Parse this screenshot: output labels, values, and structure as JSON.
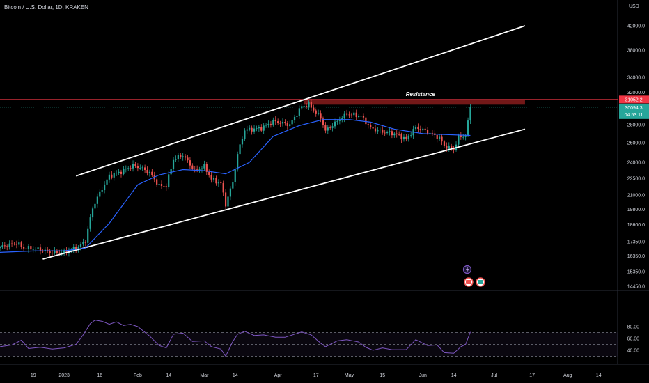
{
  "header": {
    "title": "Bitcoin / U.S. Dollar, 1D, KRAKEN",
    "currency": "USD"
  },
  "annotations": {
    "resistance": "Resistance"
  },
  "price_tags": {
    "resistance": "31052.2",
    "current": "30094.3",
    "countdown": "04:53:11"
  },
  "colors": {
    "background": "#000000",
    "up": "#26a69a",
    "down": "#ef5350",
    "ma": "#2962ff",
    "rsi": "#7e57c2",
    "resistance_zone": "#7f1b1b",
    "channel": "#ffffff",
    "current_tag": "#26a69a",
    "resistance_tag": "#f23645"
  },
  "chart_data": [
    {
      "type": "candlestick",
      "pair": "Bitcoin / U.S. Dollar",
      "timeframe": "1D",
      "exchange": "KRAKEN",
      "y_ticks": [
        "42000.0",
        "38000.0",
        "34000.0",
        "32000.0",
        "28000.0",
        "26000.0",
        "24000.0",
        "22500.0",
        "21000.0",
        "19800.0",
        "18600.0",
        "17350.0",
        "16350.0",
        "15350.0",
        "14450.0"
      ],
      "x_ticks": [
        "19",
        "2023",
        "16",
        "Feb",
        "14",
        "Mar",
        "14",
        "Apr",
        "17",
        "May",
        "15",
        "Jun",
        "14",
        "Jul",
        "17",
        "Aug",
        "14"
      ],
      "x_range": [
        "2022-12-05",
        "2023-08-22"
      ],
      "log_scale": true,
      "close_path": [
        [
          "2022-12-05",
          16950
        ],
        [
          "2022-12-12",
          17250
        ],
        [
          "2022-12-15",
          16900
        ],
        [
          "2022-12-20",
          16850
        ],
        [
          "2022-12-27",
          16600
        ],
        [
          "2023-01-01",
          16600
        ],
        [
          "2023-01-07",
          16950
        ],
        [
          "2023-01-10",
          17400
        ],
        [
          "2023-01-13",
          19900
        ],
        [
          "2023-01-15",
          20800
        ],
        [
          "2023-01-20",
          22700
        ],
        [
          "2023-01-25",
          23100
        ],
        [
          "2023-01-30",
          23700
        ],
        [
          "2023-02-02",
          23500
        ],
        [
          "2023-02-06",
          23000
        ],
        [
          "2023-02-10",
          21800
        ],
        [
          "2023-02-13",
          21800
        ],
        [
          "2023-02-16",
          24300
        ],
        [
          "2023-02-20",
          24700
        ],
        [
          "2023-02-25",
          23200
        ],
        [
          "2023-03-01",
          23600
        ],
        [
          "2023-03-04",
          22400
        ],
        [
          "2023-03-08",
          22000
        ],
        [
          "2023-03-10",
          20200
        ],
        [
          "2023-03-13",
          22100
        ],
        [
          "2023-03-15",
          24800
        ],
        [
          "2023-03-18",
          27400
        ],
        [
          "2023-03-25",
          27600
        ],
        [
          "2023-03-30",
          28400
        ],
        [
          "2023-04-06",
          28000
        ],
        [
          "2023-04-11",
          30200
        ],
        [
          "2023-04-14",
          30400
        ],
        [
          "2023-04-19",
          28800
        ],
        [
          "2023-04-21",
          27300
        ],
        [
          "2023-04-26",
          28400
        ],
        [
          "2023-04-30",
          29300
        ],
        [
          "2023-05-06",
          29000
        ],
        [
          "2023-05-10",
          27600
        ],
        [
          "2023-05-15",
          27200
        ],
        [
          "2023-05-20",
          27000
        ],
        [
          "2023-05-25",
          26400
        ],
        [
          "2023-05-29",
          27700
        ],
        [
          "2023-06-03",
          27200
        ],
        [
          "2023-06-08",
          26500
        ],
        [
          "2023-06-10",
          25700
        ],
        [
          "2023-06-14",
          25300
        ],
        [
          "2023-06-16",
          26600
        ],
        [
          "2023-06-19",
          26800
        ],
        [
          "2023-06-20",
          28300
        ],
        [
          "2023-06-21",
          30094
        ]
      ],
      "ma_path": [
        [
          "2022-12-05",
          16600
        ],
        [
          "2022-12-20",
          16700
        ],
        [
          "2023-01-01",
          16700
        ],
        [
          "2023-01-10",
          16900
        ],
        [
          "2023-01-20",
          18700
        ],
        [
          "2023-02-01",
          21900
        ],
        [
          "2023-02-10",
          22800
        ],
        [
          "2023-02-20",
          23300
        ],
        [
          "2023-03-01",
          23200
        ],
        [
          "2023-03-10",
          22900
        ],
        [
          "2023-03-20",
          24000
        ],
        [
          "2023-03-30",
          26700
        ],
        [
          "2023-04-10",
          27900
        ],
        [
          "2023-04-20",
          28600
        ],
        [
          "2023-05-01",
          28600
        ],
        [
          "2023-05-10",
          28300
        ],
        [
          "2023-05-20",
          27500
        ],
        [
          "2023-06-01",
          27000
        ],
        [
          "2023-06-10",
          26900
        ],
        [
          "2023-06-21",
          26800
        ]
      ],
      "resistance_zone": {
        "from": 30400,
        "to": 31052.2,
        "start": "2023-04-12",
        "end": "2023-07-14"
      },
      "channel": {
        "upper": [
          [
            "2023-01-06",
            22700
          ],
          [
            "2023-07-14",
            42000
          ]
        ],
        "lower": [
          [
            "2022-12-23",
            16150
          ],
          [
            "2023-07-14",
            27500
          ]
        ]
      },
      "current_price": 30094.3,
      "resistance_price": 31052.2
    },
    {
      "type": "line",
      "indicator": "RSI",
      "y_ticks": [
        "80.00",
        "60.00",
        "40.00"
      ],
      "levels": {
        "upper": 70,
        "middle": 50,
        "lower": 30
      },
      "x_range": [
        "2022-12-05",
        "2023-08-22"
      ],
      "series": [
        [
          "2022-12-05",
          46
        ],
        [
          "2022-12-10",
          49
        ],
        [
          "2022-12-14",
          57
        ],
        [
          "2022-12-17",
          43
        ],
        [
          "2022-12-22",
          45
        ],
        [
          "2022-12-27",
          42
        ],
        [
          "2023-01-01",
          44
        ],
        [
          "2023-01-06",
          50
        ],
        [
          "2023-01-09",
          66
        ],
        [
          "2023-01-12",
          85
        ],
        [
          "2023-01-14",
          91
        ],
        [
          "2023-01-17",
          89
        ],
        [
          "2023-01-20",
          84
        ],
        [
          "2023-01-23",
          88
        ],
        [
          "2023-01-26",
          82
        ],
        [
          "2023-01-29",
          84
        ],
        [
          "2023-02-01",
          80
        ],
        [
          "2023-02-06",
          64
        ],
        [
          "2023-02-10",
          48
        ],
        [
          "2023-02-13",
          44
        ],
        [
          "2023-02-16",
          67
        ],
        [
          "2023-02-20",
          69
        ],
        [
          "2023-02-24",
          55
        ],
        [
          "2023-03-01",
          56
        ],
        [
          "2023-03-04",
          46
        ],
        [
          "2023-03-08",
          42
        ],
        [
          "2023-03-10",
          30
        ],
        [
          "2023-03-13",
          55
        ],
        [
          "2023-03-15",
          67
        ],
        [
          "2023-03-18",
          72
        ],
        [
          "2023-03-22",
          65
        ],
        [
          "2023-03-26",
          66
        ],
        [
          "2023-03-31",
          62
        ],
        [
          "2023-04-04",
          62
        ],
        [
          "2023-04-11",
          71
        ],
        [
          "2023-04-15",
          66
        ],
        [
          "2023-04-19",
          52
        ],
        [
          "2023-04-21",
          46
        ],
        [
          "2023-04-26",
          56
        ],
        [
          "2023-04-30",
          58
        ],
        [
          "2023-05-05",
          54
        ],
        [
          "2023-05-08",
          45
        ],
        [
          "2023-05-11",
          40
        ],
        [
          "2023-05-15",
          44
        ],
        [
          "2023-05-19",
          41
        ],
        [
          "2023-05-25",
          41
        ],
        [
          "2023-05-29",
          58
        ],
        [
          "2023-06-03",
          48
        ],
        [
          "2023-06-07",
          49
        ],
        [
          "2023-06-10",
          36
        ],
        [
          "2023-06-14",
          35
        ],
        [
          "2023-06-17",
          46
        ],
        [
          "2023-06-19",
          50
        ],
        [
          "2023-06-21",
          71
        ]
      ]
    }
  ]
}
